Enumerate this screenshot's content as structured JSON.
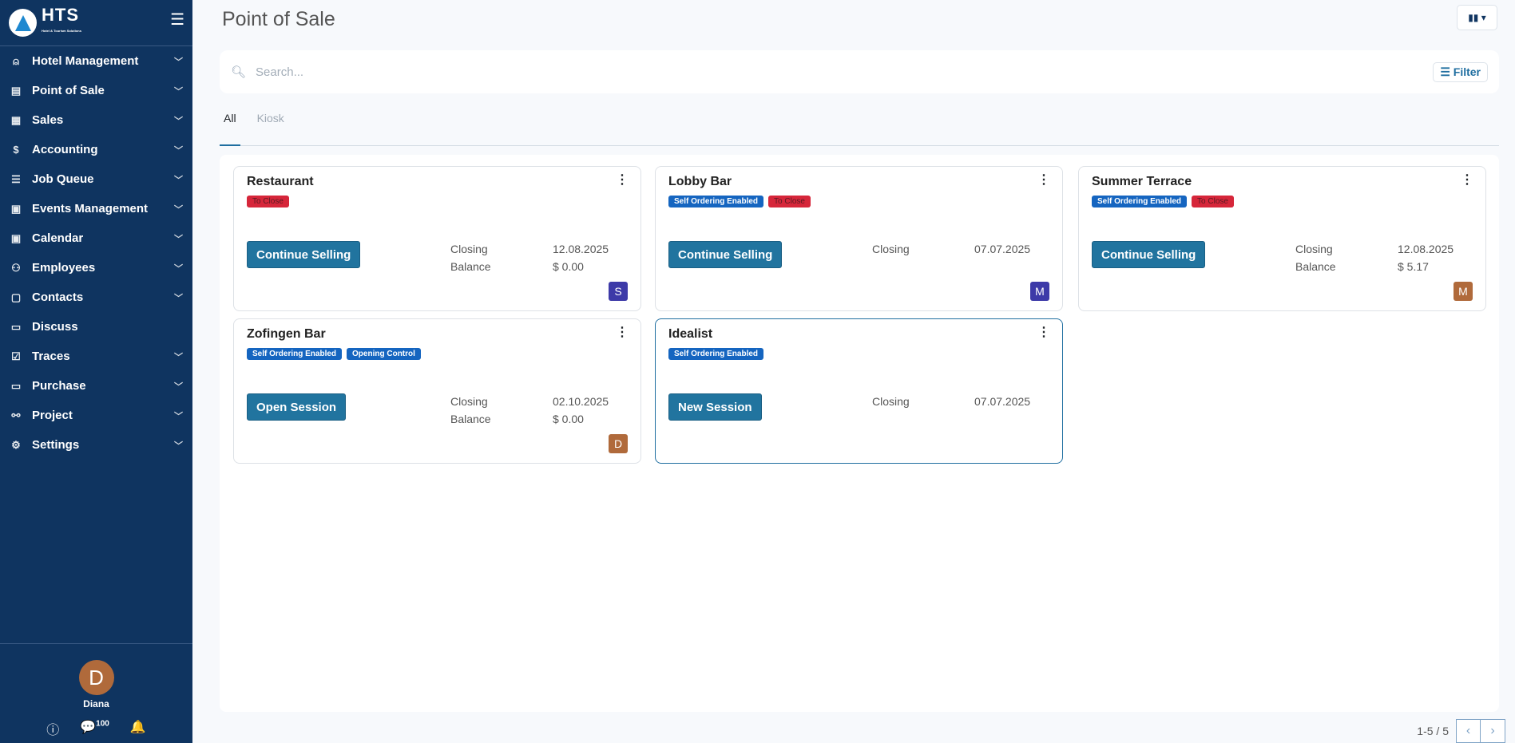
{
  "sidebar": {
    "logo_text": "HTS",
    "logo_sub": "Hotel & Tourism Solutions",
    "items": [
      {
        "label": "Hotel Management",
        "icon": "bell-icon"
      },
      {
        "label": "Point of Sale",
        "icon": "store-icon"
      },
      {
        "label": "Sales",
        "icon": "register-icon"
      },
      {
        "label": "Accounting",
        "icon": "money-bag-icon"
      },
      {
        "label": "Job Queue",
        "icon": "list-icon"
      },
      {
        "label": "Events Management",
        "icon": "calendar-icon"
      },
      {
        "label": "Calendar",
        "icon": "calendar-icon"
      },
      {
        "label": "Employees",
        "icon": "people-icon"
      },
      {
        "label": "Contacts",
        "icon": "contact-card-icon"
      },
      {
        "label": "Discuss",
        "icon": "chat-icon"
      },
      {
        "label": "Traces",
        "icon": "checkbox-icon"
      },
      {
        "label": "Purchase",
        "icon": "wallet-icon"
      },
      {
        "label": "Project",
        "icon": "project-icon"
      },
      {
        "label": "Settings",
        "icon": "gear-icon"
      }
    ],
    "user": {
      "initial": "D",
      "name": "Diana",
      "avatar_color": "#b06a3b"
    },
    "message_count": "100"
  },
  "header": {
    "title": "Point of Sale"
  },
  "search": {
    "placeholder": "Search...",
    "value": "",
    "filter_label": "Filter"
  },
  "tabs": [
    {
      "label": "All",
      "active": true
    },
    {
      "label": "Kiosk",
      "active": false
    }
  ],
  "cards": [
    {
      "name": "Restaurant",
      "badges": [
        {
          "label": "To Close",
          "type": "red"
        }
      ],
      "button": "Continue Selling",
      "closing_label": "Closing",
      "closing": "12.08.2025",
      "balance_label": "Balance",
      "balance": "$ 0.00",
      "avatar": "S",
      "avatar_color": "#3d3aa8"
    },
    {
      "name": "Lobby Bar",
      "badges": [
        {
          "label": "Self Ordering Enabled",
          "type": "blue"
        },
        {
          "label": "To Close",
          "type": "red"
        }
      ],
      "button": "Continue Selling",
      "closing_label": "Closing",
      "closing": "07.07.2025",
      "avatar": "M",
      "avatar_color": "#3d3aa8"
    },
    {
      "name": "Summer Terrace",
      "badges": [
        {
          "label": "Self Ordering Enabled",
          "type": "blue"
        },
        {
          "label": "To Close",
          "type": "red"
        }
      ],
      "button": "Continue Selling",
      "closing_label": "Closing",
      "closing": "12.08.2025",
      "balance_label": "Balance",
      "balance": "$ 5.17",
      "avatar": "M",
      "avatar_color": "#b06a3b"
    },
    {
      "name": "Zofingen Bar",
      "badges": [
        {
          "label": "Self Ordering Enabled",
          "type": "blue"
        },
        {
          "label": "Opening Control",
          "type": "blue"
        }
      ],
      "button": "Open Session",
      "closing_label": "Closing",
      "closing": "02.10.2025",
      "balance_label": "Balance",
      "balance": "$ 0.00",
      "avatar": "D",
      "avatar_color": "#b06a3b"
    },
    {
      "name": "Idealist",
      "badges": [
        {
          "label": "Self Ordering Enabled",
          "type": "blue"
        }
      ],
      "button": "New Session",
      "closing_label": "Closing",
      "closing": "07.07.2025"
    }
  ],
  "pager": {
    "range": "1-5 / 5"
  }
}
